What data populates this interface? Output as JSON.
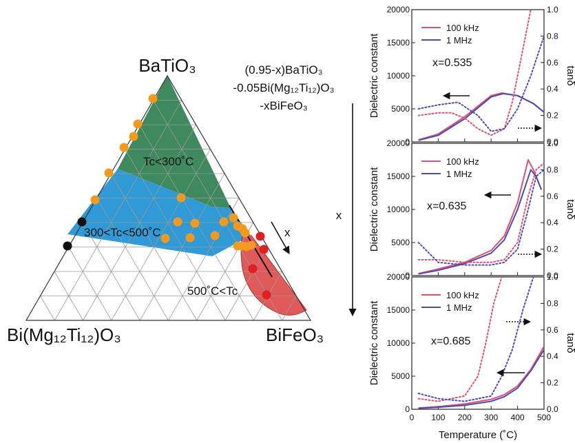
{
  "ternary": {
    "vertices": {
      "top": "BaTiO₃",
      "left": "Bi(Mg₁₂Ti₁₂)O₃",
      "right": "BiFeO₃"
    },
    "formula": [
      "(0.95-x)BaTiO₃",
      "-0.05Bi(Mg₁₂Ti₁₂)O₃",
      "-xBiFeO₃"
    ],
    "regions": [
      {
        "label": "Tc<300˚C",
        "color": "#3e8a5e"
      },
      {
        "label": "300<Tc<500˚C",
        "color": "#2f9ad5"
      },
      {
        "label": "500˚C<Tc",
        "color": "#e05a5a"
      }
    ],
    "x_arrow_label": "x",
    "point_colors": {
      "orange": "#f39a1e",
      "black": "#111111",
      "red": "#e02020"
    }
  },
  "x_axis_label": "x",
  "chart_data": [
    {
      "type": "line",
      "panel_label": "x=0.535",
      "ylabel": "Dielectric constant",
      "y2label": "tanδ",
      "xlim": [
        0,
        500
      ],
      "ylim": [
        0,
        20000
      ],
      "y2lim": [
        0.0,
        1.0
      ],
      "yticks": [
        0,
        5000,
        10000,
        15000,
        20000
      ],
      "y2ticks": [
        "0.0",
        "0.2",
        "0.4",
        "0.6",
        "0.8",
        "1.0"
      ],
      "legend": [
        "100 kHz",
        "1 MHz"
      ],
      "series": [
        {
          "name": "100 kHz",
          "axis": "left",
          "style": "solid",
          "color": "#e0506a",
          "x": [
            25,
            100,
            200,
            300,
            340,
            400,
            460,
            500
          ],
          "y": [
            300,
            1200,
            3800,
            7000,
            7400,
            7000,
            5800,
            4500
          ]
        },
        {
          "name": "1 MHz",
          "axis": "left",
          "style": "solid",
          "color": "#4a4ab8",
          "x": [
            25,
            100,
            200,
            300,
            345,
            400,
            460,
            500
          ],
          "y": [
            250,
            1000,
            3500,
            6800,
            7300,
            7000,
            5800,
            4500
          ]
        },
        {
          "name": "100 kHz tanδ",
          "axis": "right",
          "style": "dotted",
          "color": "#e0506a",
          "x": [
            25,
            100,
            150,
            200,
            250,
            300,
            350,
            380,
            420,
            450
          ],
          "y": [
            0.2,
            0.22,
            0.22,
            0.18,
            0.1,
            0.05,
            0.1,
            0.3,
            0.7,
            1.0
          ]
        },
        {
          "name": "1 MHz tanδ",
          "axis": "right",
          "style": "dotted",
          "color": "#4a4ab8",
          "x": [
            25,
            100,
            175,
            250,
            300,
            350,
            400,
            450,
            500
          ],
          "y": [
            0.25,
            0.28,
            0.3,
            0.2,
            0.08,
            0.1,
            0.25,
            0.5,
            0.8
          ]
        }
      ]
    },
    {
      "type": "line",
      "panel_label": "x=0.635",
      "ylabel": "Dielectric constant",
      "y2label": "tanδ",
      "xlim": [
        0,
        500
      ],
      "ylim": [
        0,
        20000
      ],
      "y2lim": [
        0.0,
        1.0
      ],
      "yticks": [
        0,
        5000,
        10000,
        15000,
        20000
      ],
      "y2ticks": [
        "0.0",
        "0.2",
        "0.4",
        "0.6",
        "0.8",
        "1.0"
      ],
      "legend": [
        "100 kHz",
        "1 MHz"
      ],
      "series": [
        {
          "name": "100 kHz",
          "axis": "left",
          "style": "solid",
          "color": "#e0506a",
          "x": [
            25,
            100,
            200,
            300,
            350,
            400,
            440,
            460,
            490
          ],
          "y": [
            300,
            1000,
            2000,
            3800,
            6000,
            11000,
            17500,
            16000,
            13000
          ]
        },
        {
          "name": "1 MHz",
          "axis": "left",
          "style": "solid",
          "color": "#4a4ab8",
          "x": [
            25,
            100,
            200,
            300,
            350,
            400,
            450,
            470,
            490
          ],
          "y": [
            250,
            800,
            1800,
            3400,
            5400,
            10000,
            16000,
            15000,
            13000
          ]
        },
        {
          "name": "100 kHz tanδ",
          "axis": "right",
          "style": "dotted",
          "color": "#e0506a",
          "x": [
            25,
            100,
            200,
            300,
            350,
            400,
            440,
            470,
            500
          ],
          "y": [
            0.12,
            0.12,
            0.1,
            0.1,
            0.12,
            0.25,
            0.6,
            0.8,
            0.85
          ]
        },
        {
          "name": "1 MHz tanδ",
          "axis": "right",
          "style": "dotted",
          "color": "#4a4ab8",
          "x": [
            25,
            100,
            200,
            300,
            350,
            400,
            440,
            470,
            500
          ],
          "y": [
            0.25,
            0.1,
            0.08,
            0.08,
            0.1,
            0.2,
            0.5,
            0.75,
            0.8
          ]
        }
      ]
    },
    {
      "type": "line",
      "panel_label": "x=0.685",
      "xlabel": "Temperature (˚C)",
      "ylabel": "Dielectric constant",
      "y2label": "tanδ",
      "xlim": [
        0,
        500
      ],
      "ylim": [
        0,
        20000
      ],
      "y2lim": [
        0.0,
        1.0
      ],
      "xticks": [
        0,
        100,
        200,
        300,
        400,
        500
      ],
      "yticks": [
        0,
        5000,
        10000,
        15000,
        20000
      ],
      "y2ticks": [
        "0.0",
        "0.2",
        "0.4",
        "0.6",
        "0.8",
        "1.0"
      ],
      "legend": [
        "100 kHz",
        "1 MHz"
      ],
      "series": [
        {
          "name": "100 kHz",
          "axis": "left",
          "style": "solid",
          "color": "#e0506a",
          "x": [
            25,
            100,
            200,
            300,
            350,
            400,
            450,
            500
          ],
          "y": [
            200,
            400,
            800,
            1500,
            2200,
            3500,
            6000,
            9500
          ]
        },
        {
          "name": "1 MHz",
          "axis": "left",
          "style": "solid",
          "color": "#4a4ab8",
          "x": [
            25,
            100,
            200,
            300,
            350,
            400,
            450,
            500
          ],
          "y": [
            150,
            300,
            600,
            1200,
            1900,
            3200,
            5800,
            9000
          ]
        },
        {
          "name": "100 kHz tanδ",
          "axis": "right",
          "style": "dotted",
          "color": "#e0506a",
          "x": [
            25,
            100,
            200,
            250,
            280,
            310,
            340
          ],
          "y": [
            0.08,
            0.06,
            0.1,
            0.25,
            0.5,
            0.8,
            1.0
          ]
        },
        {
          "name": "1 MHz tanδ",
          "axis": "right",
          "style": "dotted",
          "color": "#4a4ab8",
          "x": [
            25,
            100,
            200,
            300,
            340,
            380,
            420,
            460
          ],
          "y": [
            0.12,
            0.08,
            0.06,
            0.1,
            0.25,
            0.45,
            0.75,
            1.0
          ]
        }
      ]
    }
  ]
}
